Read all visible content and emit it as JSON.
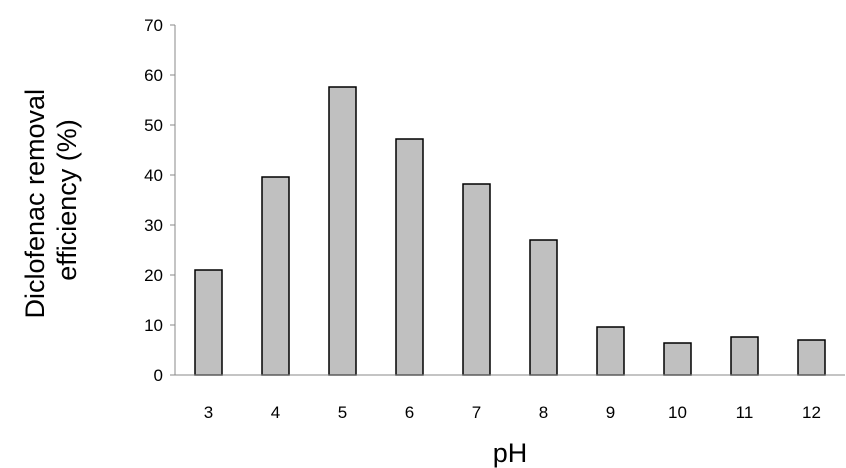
{
  "chart_data": {
    "type": "bar",
    "title": "",
    "xlabel": "pH",
    "ylabel": [
      "Diclofenac removal",
      "efficiency (%)"
    ],
    "categories": [
      "3",
      "4",
      "5",
      "6",
      "7",
      "8",
      "9",
      "10",
      "11",
      "12"
    ],
    "values": [
      21,
      39.6,
      57.6,
      47.2,
      38.2,
      27,
      9.6,
      6.4,
      7.6,
      7
    ],
    "ylim": [
      0,
      70
    ],
    "yticks": [
      0,
      10,
      20,
      30,
      40,
      50,
      60,
      70
    ],
    "grid": false,
    "legend": "none",
    "colors": {
      "bar_fill": "#c0c0c0",
      "bar_stroke": "#000000",
      "axis": "#888888"
    }
  }
}
